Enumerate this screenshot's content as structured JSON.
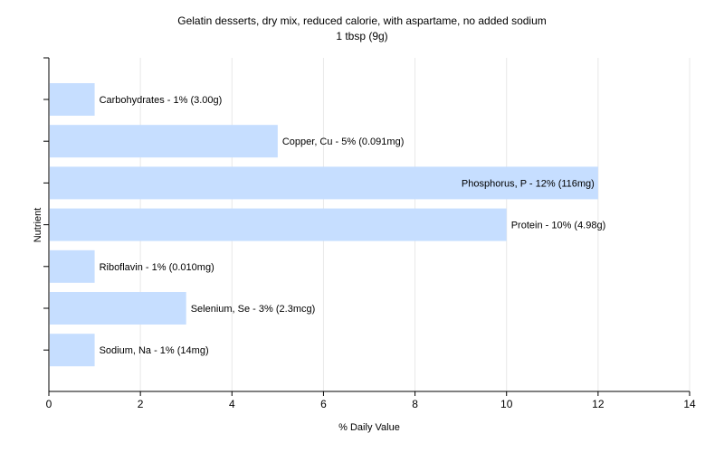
{
  "chart_data": {
    "type": "bar",
    "orientation": "horizontal",
    "title": "Gelatin desserts, dry mix, reduced calorie, with aspartame, no added sodium",
    "subtitle": "1 tbsp (9g)",
    "xlabel": "% Daily Value",
    "ylabel": "Nutrient",
    "xlim": [
      0,
      14
    ],
    "xticks": [
      0,
      2,
      4,
      6,
      8,
      10,
      12,
      14
    ],
    "grid": true,
    "bar_color": "#c6deff",
    "bars": [
      {
        "category": "Carbohydrates",
        "value": 1,
        "label": "Carbohydrates - 1% (3.00g)"
      },
      {
        "category": "Copper, Cu",
        "value": 5,
        "label": "Copper, Cu - 5% (0.091mg)"
      },
      {
        "category": "Phosphorus, P",
        "value": 12,
        "label": "Phosphorus, P - 12% (116mg)"
      },
      {
        "category": "Protein",
        "value": 10,
        "label": "Protein - 10% (4.98g)"
      },
      {
        "category": "Riboflavin",
        "value": 1,
        "label": "Riboflavin - 1% (0.010mg)"
      },
      {
        "category": "Selenium, Se",
        "value": 3,
        "label": "Selenium, Se - 3% (2.3mcg)"
      },
      {
        "category": "Sodium, Na",
        "value": 1,
        "label": "Sodium, Na - 1% (14mg)"
      }
    ]
  }
}
